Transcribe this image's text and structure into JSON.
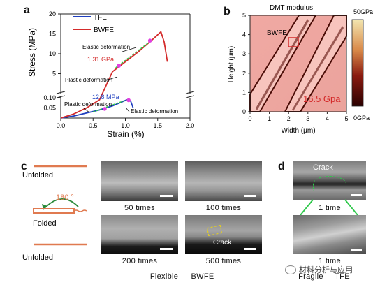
{
  "panels": {
    "a": {
      "letter": "a",
      "chart_data": {
        "type": "line",
        "xlabel": "Strain (%)",
        "ylabel": "Stress (MPa)",
        "xlim": [
          0,
          2.0
        ],
        "x_ticks": [
          "0.0",
          "0.5",
          "1.0",
          "1.5",
          "2.0"
        ],
        "y_ticks_lower": [
          "0.05",
          "0.10"
        ],
        "y_ticks_upper": [
          "5",
          "10",
          "15",
          "20"
        ],
        "legend": {
          "placement": "top-left"
        },
        "series": [
          {
            "name": "TFE",
            "color": "#1f3fbf",
            "x": [
              0.0,
              0.2,
              0.4,
              0.6,
              0.8,
              0.95,
              1.02,
              1.08,
              1.12
            ],
            "y": [
              0.0,
              0.01,
              0.025,
              0.04,
              0.06,
              0.08,
              0.09,
              0.085,
              0.05
            ]
          },
          {
            "name": "BWFE",
            "color": "#d42b2b",
            "x": [
              0.0,
              0.2,
              0.4,
              0.6,
              0.8,
              1.0,
              1.2,
              1.4,
              1.55,
              1.6,
              1.65
            ],
            "y": [
              0.0,
              0.02,
              0.05,
              0.09,
              5.5,
              8.0,
              10.5,
              13.3,
              15.5,
              13.0,
              8.0
            ]
          }
        ],
        "annotations": {
          "elastic_upper": "Elastic deformation",
          "modulus_upper": "1.31 GPa",
          "plastic_upper": "Plastic deformation",
          "modulus_lower": "12.8 MPa",
          "plastic_lower": "Plastic deformation",
          "elastic_lower": "Elastic deformation"
        }
      }
    },
    "b": {
      "letter": "b",
      "title": "DMT modulus",
      "label": "BWFE",
      "value": "16.5 Gpa",
      "xlabel": "Width (μm)",
      "ylabel": "Height (μm)",
      "x_ticks": [
        "0",
        "1",
        "2",
        "3",
        "4",
        "5"
      ],
      "y_ticks": [
        "0",
        "1",
        "2",
        "3",
        "4",
        "5"
      ],
      "colorbar_max": "50GPa",
      "colorbar_min": "0GPa"
    },
    "c": {
      "letter": "c",
      "states": [
        "Unfolded",
        "Folded",
        "Unfolded"
      ],
      "angle": "180 °",
      "images": [
        "50 times",
        "100 times",
        "200 times",
        "500 times"
      ],
      "crack_label": "Crack",
      "footer": [
        "Flexible",
        "BWFE"
      ]
    },
    "d": {
      "letter": "d",
      "crack_label": "Crack",
      "image_top_label": "1 time",
      "image_bottom_label": "1 time",
      "footer": [
        "Fragile",
        "TFE"
      ]
    },
    "watermark": "材料分析与应用"
  }
}
